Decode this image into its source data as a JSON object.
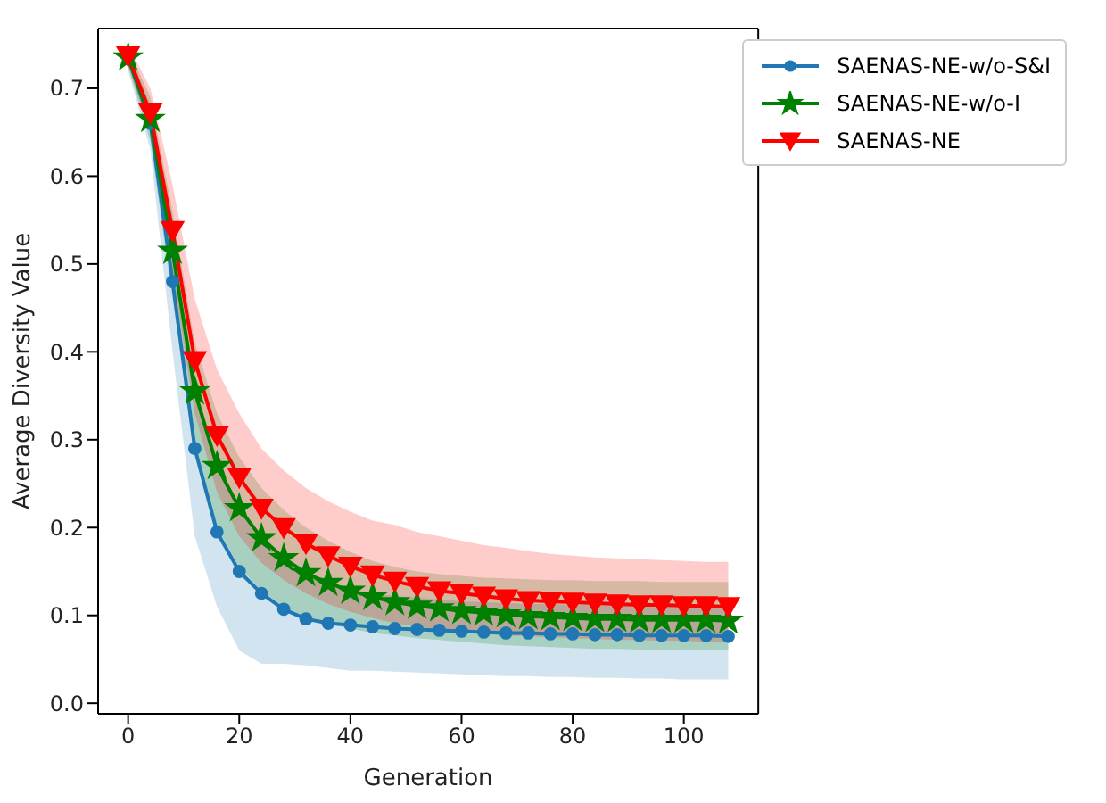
{
  "chart_data": {
    "type": "line",
    "xlabel": "Generation",
    "ylabel": "Average Diversity Value",
    "x": [
      0,
      4,
      8,
      12,
      16,
      20,
      24,
      28,
      32,
      36,
      40,
      44,
      48,
      52,
      56,
      60,
      64,
      68,
      72,
      76,
      80,
      84,
      88,
      92,
      96,
      100,
      104,
      108
    ],
    "xlim": [
      -5.4,
      113.4
    ],
    "xticks": [
      0,
      20,
      40,
      60,
      80,
      100
    ],
    "ylim": [
      -0.012,
      0.768
    ],
    "yticks": [
      {
        "value": 0,
        "label": "0.0"
      },
      0.1,
      0.2,
      0.3,
      0.4,
      0.5,
      0.6,
      0.7
    ],
    "legend": "top right",
    "line_style": "solid",
    "series": [
      {
        "name": "SAENAS-NE-w/o-S&I",
        "color": "#1f77b4",
        "marker": "circle",
        "values": [
          0.735,
          0.66,
          0.48,
          0.29,
          0.195,
          0.15,
          0.125,
          0.107,
          0.096,
          0.091,
          0.089,
          0.087,
          0.085,
          0.084,
          0.083,
          0.082,
          0.081,
          0.08,
          0.08,
          0.079,
          0.079,
          0.078,
          0.078,
          0.077,
          0.077,
          0.077,
          0.077,
          0.076
        ],
        "lower": [
          0.72,
          0.63,
          0.4,
          0.19,
          0.11,
          0.06,
          0.045,
          0.045,
          0.043,
          0.04,
          0.037,
          0.037,
          0.036,
          0.035,
          0.034,
          0.033,
          0.032,
          0.031,
          0.031,
          0.03,
          0.03,
          0.029,
          0.029,
          0.028,
          0.028,
          0.027,
          0.027,
          0.027
        ],
        "upper": [
          0.745,
          0.68,
          0.53,
          0.36,
          0.27,
          0.22,
          0.19,
          0.165,
          0.145,
          0.135,
          0.13,
          0.125,
          0.122,
          0.12,
          0.118,
          0.116,
          0.115,
          0.114,
          0.113,
          0.113,
          0.112,
          0.112,
          0.111,
          0.111,
          0.11,
          0.11,
          0.11,
          0.11
        ]
      },
      {
        "name": "SAENAS-NE-w/o-I",
        "color": "#008000",
        "marker": "star",
        "values": [
          0.735,
          0.665,
          0.515,
          0.355,
          0.27,
          0.222,
          0.188,
          0.165,
          0.148,
          0.137,
          0.128,
          0.121,
          0.115,
          0.111,
          0.108,
          0.105,
          0.103,
          0.101,
          0.099,
          0.098,
          0.097,
          0.096,
          0.096,
          0.095,
          0.095,
          0.095,
          0.095,
          0.094
        ],
        "lower": [
          0.725,
          0.64,
          0.46,
          0.29,
          0.2,
          0.155,
          0.128,
          0.11,
          0.098,
          0.09,
          0.085,
          0.08,
          0.077,
          0.074,
          0.072,
          0.07,
          0.068,
          0.066,
          0.065,
          0.064,
          0.063,
          0.062,
          0.062,
          0.061,
          0.061,
          0.06,
          0.06,
          0.06
        ],
        "upper": [
          0.745,
          0.69,
          0.56,
          0.41,
          0.33,
          0.28,
          0.245,
          0.22,
          0.2,
          0.185,
          0.172,
          0.162,
          0.155,
          0.15,
          0.147,
          0.145,
          0.143,
          0.142,
          0.141,
          0.14,
          0.14,
          0.139,
          0.139,
          0.139,
          0.138,
          0.138,
          0.138,
          0.138
        ]
      },
      {
        "name": "SAENAS-NE",
        "color": "#ff0000",
        "marker": "triangle",
        "values": [
          0.737,
          0.672,
          0.538,
          0.39,
          0.305,
          0.257,
          0.222,
          0.2,
          0.182,
          0.168,
          0.156,
          0.146,
          0.139,
          0.133,
          0.128,
          0.125,
          0.122,
          0.119,
          0.117,
          0.116,
          0.115,
          0.114,
          0.113,
          0.112,
          0.112,
          0.111,
          0.111,
          0.11
        ],
        "lower": [
          0.725,
          0.65,
          0.49,
          0.33,
          0.24,
          0.19,
          0.16,
          0.14,
          0.125,
          0.113,
          0.104,
          0.097,
          0.091,
          0.087,
          0.084,
          0.081,
          0.079,
          0.077,
          0.076,
          0.075,
          0.074,
          0.073,
          0.072,
          0.072,
          0.071,
          0.071,
          0.07,
          0.07
        ],
        "upper": [
          0.75,
          0.7,
          0.59,
          0.46,
          0.38,
          0.33,
          0.29,
          0.265,
          0.245,
          0.23,
          0.218,
          0.208,
          0.203,
          0.195,
          0.19,
          0.185,
          0.18,
          0.177,
          0.173,
          0.17,
          0.168,
          0.166,
          0.165,
          0.164,
          0.163,
          0.162,
          0.161,
          0.161
        ]
      }
    ]
  }
}
